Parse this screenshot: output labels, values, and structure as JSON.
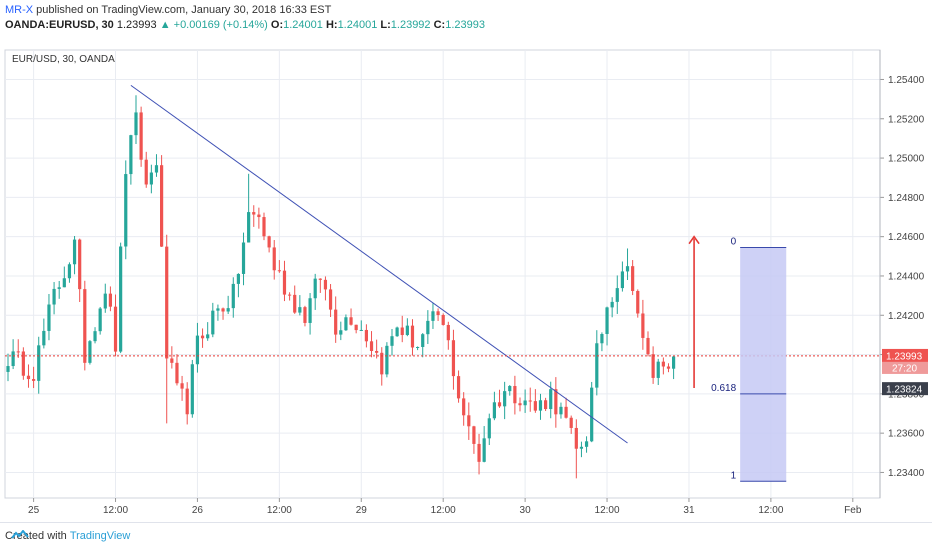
{
  "header": {
    "author": "MR-X",
    "published_text": " published on TradingView.com, January 30, 2018 16:33 EST",
    "symbol": "OANDA:EURUSD, 30",
    "last": "1.23993",
    "change": "+0.00169 (+0.14%)",
    "o_label": "O:",
    "o_value": "1.24001",
    "h_label": "H:",
    "h_value": "1.24001",
    "l_label": "L:",
    "l_value": "1.23992",
    "c_label": "C:",
    "c_value": "1.23993"
  },
  "footer": {
    "created_with": "Created with",
    "brand": "TradingView"
  },
  "colors": {
    "up": "#26a69a",
    "down": "#ef5350",
    "trendline": "#3f51b5",
    "arrow": "#e53935",
    "fib_fill": "#c5c9f5",
    "fib_line": "#3949ab",
    "price_line": "#e53935",
    "grid": "#e9ecf2"
  },
  "chart_data": {
    "type": "candlestick",
    "title": "EUR/USD, 30, OANDA",
    "yaxis": {
      "range": [
        1.2327,
        1.2555
      ],
      "ticks": [
        "1.25400",
        "1.25200",
        "1.25000",
        "1.24800",
        "1.24600",
        "1.24400",
        "1.24200",
        "1.24000",
        "1.23800",
        "1.23600",
        "1.23400"
      ],
      "tick_values": [
        1.254,
        1.252,
        1.25,
        1.248,
        1.246,
        1.244,
        1.242,
        1.24,
        1.238,
        1.236,
        1.234
      ]
    },
    "xaxis": {
      "ticks": [
        "25",
        "12:00",
        "26",
        "12:00",
        "29",
        "12:00",
        "30",
        "12:00",
        "31",
        "12:00",
        "Feb"
      ],
      "tick_index": [
        5,
        21,
        37,
        53,
        69,
        85,
        101,
        117,
        133,
        149,
        165
      ]
    },
    "last_price": {
      "label": "1.23993",
      "value": 1.23993,
      "countdown": "27:20"
    },
    "marker_price": {
      "label": "1.23824",
      "value": 1.23824
    },
    "anchors": [
      {
        "i": 0,
        "p": 1.2399
      },
      {
        "i": 5,
        "p": 1.2392
      },
      {
        "i": 9,
        "p": 1.243
      },
      {
        "i": 13,
        "p": 1.2455
      },
      {
        "i": 15,
        "p": 1.24
      },
      {
        "i": 19,
        "p": 1.2435
      },
      {
        "i": 21,
        "p": 1.2405
      },
      {
        "i": 23,
        "p": 1.2495
      },
      {
        "i": 25,
        "p": 1.2518
      },
      {
        "i": 27,
        "p": 1.2485
      },
      {
        "i": 29,
        "p": 1.25
      },
      {
        "i": 31,
        "p": 1.24
      },
      {
        "i": 33,
        "p": 1.238
      },
      {
        "i": 35,
        "p": 1.2375
      },
      {
        "i": 37,
        "p": 1.2405
      },
      {
        "i": 40,
        "p": 1.242
      },
      {
        "i": 44,
        "p": 1.243
      },
      {
        "i": 47,
        "p": 1.247
      },
      {
        "i": 49,
        "p": 1.247
      },
      {
        "i": 52,
        "p": 1.2445
      },
      {
        "i": 55,
        "p": 1.243
      },
      {
        "i": 58,
        "p": 1.242
      },
      {
        "i": 61,
        "p": 1.244
      },
      {
        "i": 64,
        "p": 1.2415
      },
      {
        "i": 67,
        "p": 1.242
      },
      {
        "i": 70,
        "p": 1.241
      },
      {
        "i": 73,
        "p": 1.2395
      },
      {
        "i": 76,
        "p": 1.2415
      },
      {
        "i": 80,
        "p": 1.2405
      },
      {
        "i": 84,
        "p": 1.242
      },
      {
        "i": 86,
        "p": 1.2405
      },
      {
        "i": 88,
        "p": 1.238
      },
      {
        "i": 90,
        "p": 1.236
      },
      {
        "i": 92,
        "p": 1.2348
      },
      {
        "i": 94,
        "p": 1.237
      },
      {
        "i": 97,
        "p": 1.2382
      },
      {
        "i": 100,
        "p": 1.238
      },
      {
        "i": 103,
        "p": 1.2372
      },
      {
        "i": 106,
        "p": 1.238
      },
      {
        "i": 109,
        "p": 1.2365
      },
      {
        "i": 111,
        "p": 1.235
      },
      {
        "i": 113,
        "p": 1.236
      },
      {
        "i": 115,
        "p": 1.24
      },
      {
        "i": 117,
        "p": 1.2425
      },
      {
        "i": 120,
        "p": 1.2445
      },
      {
        "i": 122,
        "p": 1.2438
      },
      {
        "i": 124,
        "p": 1.2405
      },
      {
        "i": 126,
        "p": 1.239
      },
      {
        "i": 128,
        "p": 1.2398
      },
      {
        "i": 130,
        "p": 1.2399
      }
    ],
    "trendline": {
      "start": {
        "i": 24,
        "p": 1.2537
      },
      "end": {
        "i": 121,
        "p": 1.2355
      }
    },
    "arrow": {
      "from": {
        "i": 134,
        "p": 1.2383
      },
      "to": {
        "i": 134,
        "p": 1.246
      }
    },
    "fibonacci": {
      "x_from_i": 143,
      "x_to_i": 152,
      "levels": [
        {
          "label": "0",
          "value": 1.24545
        },
        {
          "label": "0.618",
          "value": 1.238
        },
        {
          "label": "1",
          "value": 1.23355
        }
      ]
    }
  }
}
